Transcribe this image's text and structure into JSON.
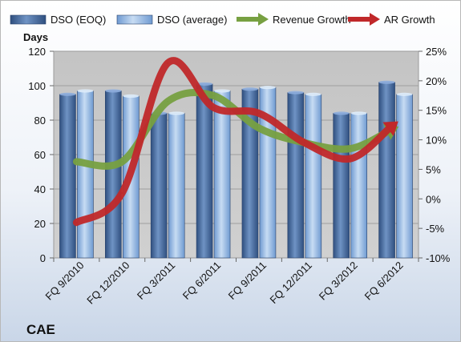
{
  "chart_data": {
    "type": "bar+line",
    "company": "CAE",
    "y_left_title": "Days",
    "categories": [
      "FQ 9/2010",
      "FQ 12/2010",
      "FQ 3/2011",
      "FQ 6/2011",
      "FQ 9/2011",
      "FQ 12/2011",
      "FQ 3/2012",
      "FQ 6/2012"
    ],
    "ylim_left": [
      0,
      120
    ],
    "ylim_right": [
      -10,
      25
    ],
    "y_left_ticks": [
      "0",
      "20",
      "40",
      "60",
      "80",
      "100",
      "120"
    ],
    "y_right_ticks": [
      "-10%",
      "-5%",
      "0%",
      "5%",
      "10%",
      "15%",
      "20%",
      "25%"
    ],
    "series": [
      {
        "name": "DSO (EOQ)",
        "kind": "bar",
        "axis": "left",
        "color": "#4a6fa5",
        "values": [
          95,
          97,
          84,
          101,
          98,
          96,
          84,
          102
        ]
      },
      {
        "name": "DSO (average)",
        "kind": "bar",
        "axis": "left",
        "color": "#8fb4e3",
        "values": [
          97,
          94,
          84,
          97,
          99,
          95,
          84,
          95
        ]
      },
      {
        "name": "Revenue Growth",
        "kind": "line",
        "axis": "right",
        "color": "#77a041",
        "values": [
          6.3,
          6.3,
          16.5,
          17.5,
          12.0,
          9.5,
          8.5,
          12.0
        ]
      },
      {
        "name": "AR Growth",
        "kind": "line",
        "axis": "right",
        "color": "#c0282a",
        "values": [
          -4.0,
          1.0,
          23.0,
          15.5,
          14.5,
          9.5,
          6.8,
          12.8
        ]
      }
    ],
    "legend_position": "top",
    "grid": true
  }
}
